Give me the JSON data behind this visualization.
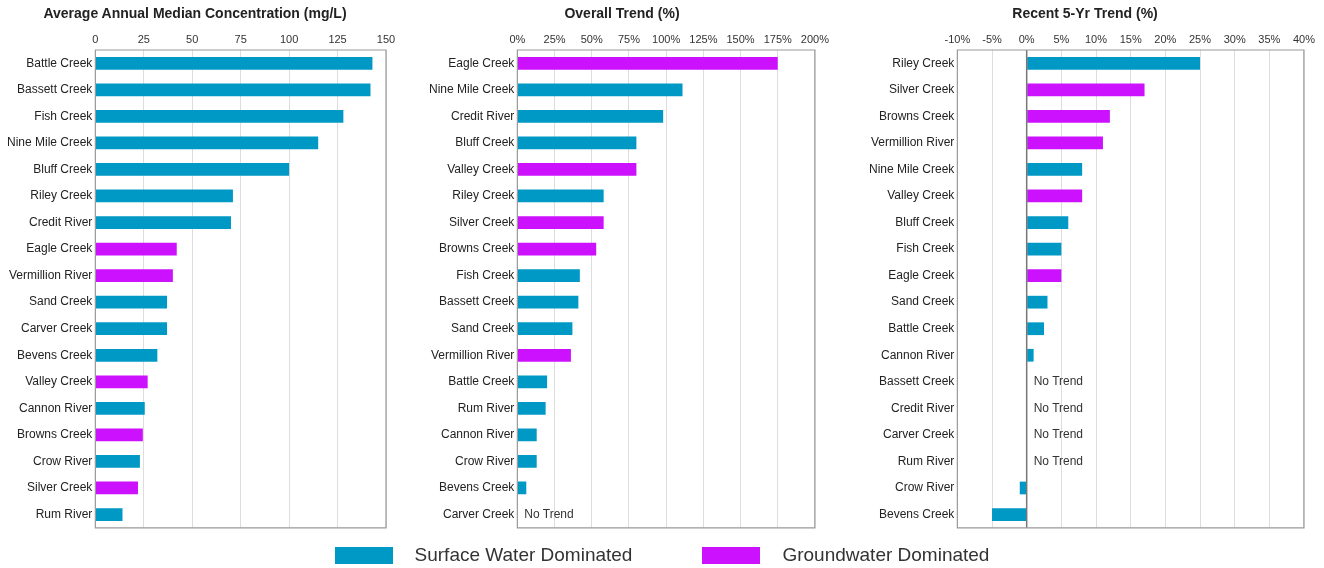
{
  "chart_data": [
    {
      "type": "bar",
      "orientation": "horizontal",
      "title": "Average Annual Median Concentration (mg/L)",
      "categories": [
        "Battle Creek",
        "Bassett Creek",
        "Fish Creek",
        "Nine Mile Creek",
        "Bluff Creek",
        "Riley Creek",
        "Credit River",
        "Eagle Creek",
        "Vermillion River",
        "Sand Creek",
        "Carver Creek",
        "Bevens Creek",
        "Valley Creek",
        "Cannon River",
        "Browns Creek",
        "Crow River",
        "Silver Creek",
        "Rum River"
      ],
      "series": [
        {
          "name": "Surface Water Dominated",
          "color": "#0099c6",
          "values": [
            143,
            142,
            128,
            115,
            100,
            71,
            70,
            null,
            null,
            37,
            37,
            32,
            null,
            25.5,
            null,
            23,
            null,
            14
          ]
        },
        {
          "name": "Groundwater Dominated",
          "color": "#cc11ff",
          "values": [
            null,
            null,
            null,
            null,
            null,
            null,
            null,
            42,
            40,
            null,
            null,
            null,
            27,
            null,
            24.5,
            null,
            22,
            null
          ]
        }
      ],
      "xlim": [
        0,
        150
      ],
      "xticks": [
        0,
        25,
        50,
        75,
        100,
        125,
        150
      ],
      "grid": "x",
      "legend": "bottom"
    },
    {
      "type": "bar",
      "orientation": "horizontal",
      "title": "Overall Trend (%)",
      "categories": [
        "Eagle Creek",
        "Nine Mile Creek",
        "Credit River",
        "Bluff Creek",
        "Valley Creek",
        "Riley Creek",
        "Silver Creek",
        "Browns Creek",
        "Fish Creek",
        "Bassett Creek",
        "Sand Creek",
        "Vermillion River",
        "Battle Creek",
        "Rum River",
        "Cannon River",
        "Crow River",
        "Bevens Creek",
        "Carver Creek"
      ],
      "series": [
        {
          "color": "#0099c6",
          "values": [
            null,
            111,
            98,
            80,
            null,
            58,
            null,
            null,
            42,
            41,
            37,
            null,
            20,
            19,
            13,
            13,
            6,
            null
          ]
        },
        {
          "color": "#cc11ff",
          "values": [
            175,
            null,
            null,
            null,
            80,
            null,
            58,
            53,
            null,
            null,
            null,
            36,
            null,
            null,
            null,
            null,
            null,
            null
          ]
        }
      ],
      "xlim": [
        0,
        200
      ],
      "xticks": [
        {
          "value": 0,
          "label": "0%"
        },
        {
          "value": 25,
          "label": "25%"
        },
        {
          "value": 50,
          "label": "50%"
        },
        {
          "value": 75,
          "label": "75%"
        },
        {
          "value": 100,
          "label": "100%"
        },
        {
          "value": 125,
          "label": "125%"
        },
        {
          "value": 150,
          "label": "150%"
        },
        {
          "value": 175,
          "label": "175%"
        },
        {
          "value": 200,
          "label": "200%"
        }
      ],
      "grid": "x",
      "annotations": [
        "No Trend"
      ]
    },
    {
      "type": "bar",
      "orientation": "horizontal",
      "title": "Recent 5-Yr Trend (%)",
      "categories": [
        "Riley Creek",
        "Silver Creek",
        "Browns Creek",
        "Vermillion River",
        "Nine Mile Creek",
        "Valley Creek",
        "Bluff Creek",
        "Fish Creek",
        "Eagle Creek",
        "Sand Creek",
        "Battle Creek",
        "Cannon River",
        "Bassett Creek",
        "Credit River",
        "Carver Creek",
        "Rum River",
        "Crow River",
        "Bevens Creek"
      ],
      "series": [
        {
          "color": "#0099c6",
          "values": [
            25,
            null,
            null,
            null,
            8,
            null,
            6,
            5,
            null,
            3,
            2.5,
            1,
            null,
            null,
            null,
            null,
            -1,
            -5
          ]
        },
        {
          "color": "#cc11ff",
          "values": [
            null,
            17,
            12,
            11,
            null,
            8,
            null,
            null,
            5,
            null,
            null,
            null,
            null,
            null,
            null,
            null,
            null,
            null
          ]
        }
      ],
      "xlim": [
        -10,
        40
      ],
      "xticks": [
        {
          "value": -10,
          "label": "-10%"
        },
        {
          "value": -5,
          "label": "-5%"
        },
        {
          "value": 0,
          "label": "0%"
        },
        {
          "value": 5,
          "label": "5%"
        },
        {
          "value": 10,
          "label": "10%"
        },
        {
          "value": 15,
          "label": "15%"
        },
        {
          "value": 20,
          "label": "20%"
        },
        {
          "value": 25,
          "label": "25%"
        },
        {
          "value": 30,
          "label": "30%"
        },
        {
          "value": 35,
          "label": "35%"
        },
        {
          "value": 40,
          "label": "40%"
        }
      ],
      "grid": "x",
      "ref_lines": [
        {
          "axis": "x",
          "value": 0,
          "color": "#777777"
        }
      ],
      "annotations": [
        "No Trend",
        "No Trend",
        "No Trend",
        "No Trend"
      ]
    }
  ]
}
